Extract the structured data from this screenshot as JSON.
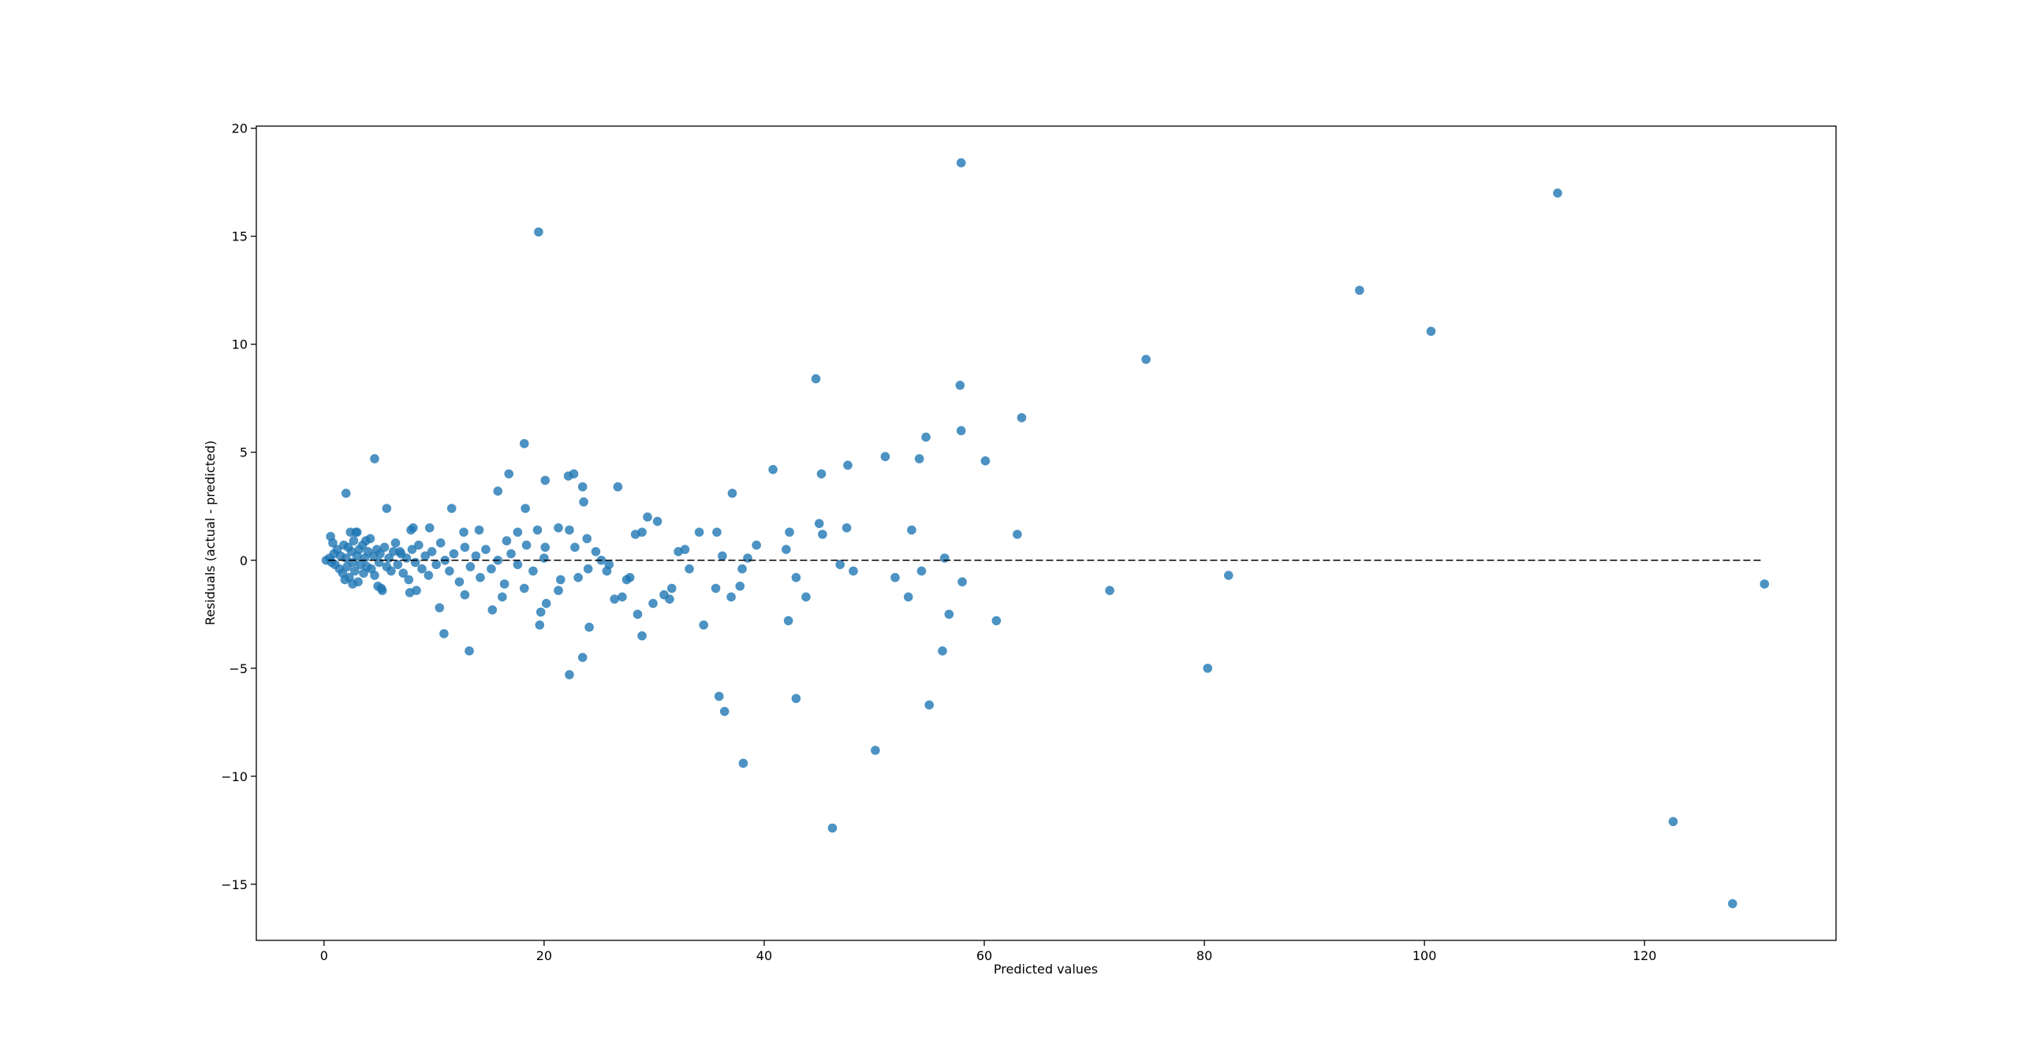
{
  "chart_data": {
    "type": "scatter",
    "xlabel": "Predicted values",
    "ylabel": "Residuals (actual - predicted)",
    "color": "#1f77b4",
    "x": [
      57.9,
      112.1,
      19.5,
      94.1,
      100.6,
      74.7,
      44.7,
      57.8,
      63.4,
      57.9,
      54.7,
      60.1,
      51.0,
      54.1,
      47.6,
      45.2,
      40.8,
      4.6,
      18.2,
      22.7,
      22.2,
      20.1,
      16.8,
      2.0,
      37.1,
      26.7,
      23.5,
      23.6,
      15.8,
      11.6,
      5.7,
      18.3,
      29.4,
      30.3,
      28.9,
      28.3,
      34.1,
      35.7,
      39.3,
      42.3,
      45.0,
      45.3,
      47.5,
      53.4,
      63.0,
      32.2,
      32.8,
      36.2,
      38.5,
      42.0,
      56.4,
      38.0,
      33.2,
      46.9,
      48.1,
      54.3,
      42.9,
      51.9,
      58.0,
      82.2,
      31.6,
      35.6,
      37.8,
      71.4,
      130.9,
      43.8,
      37.0,
      53.1,
      30.9,
      31.4,
      29.9,
      56.8,
      61.1,
      42.2,
      28.5,
      34.5,
      28.9,
      24.1,
      56.2,
      23.5,
      22.3,
      80.3,
      35.9,
      42.9,
      36.4,
      55.0,
      50.1,
      38.1,
      46.2,
      122.6,
      128.0,
      13.2,
      10.9,
      10.5,
      15.3,
      19.7,
      19.6,
      20.2,
      16.2,
      12.8,
      8.4,
      5.2,
      18.2,
      21.3,
      23.1,
      25.7,
      26.4,
      27.1,
      27.8,
      25.9,
      24.7,
      23.9,
      21.3,
      22.3,
      19.4,
      17.6,
      16.6,
      20.1,
      14.1,
      12.7,
      9.6,
      7.9,
      3.0,
      6.9,
      0.2,
      0.5,
      0.7,
      0.9,
      1.0,
      0.6,
      0.8,
      1.2,
      1.4,
      1.5,
      1.7,
      1.8,
      2.0,
      2.1,
      2.2,
      2.3,
      2.5,
      2.6,
      2.7,
      2.8,
      3.0,
      3.1,
      3.2,
      3.3,
      3.5,
      3.6,
      3.7,
      3.9,
      4.0,
      4.2,
      4.3,
      4.5,
      4.6,
      4.8,
      5.0,
      5.1,
      5.3,
      5.5,
      5.7,
      5.9,
      6.1,
      6.3,
      6.5,
      6.7,
      7.0,
      7.2,
      7.5,
      7.7,
      8.0,
      8.3,
      8.6,
      8.9,
      9.2,
      9.5,
      9.8,
      10.2,
      10.6,
      11.0,
      11.4,
      11.8,
      12.3,
      12.8,
      13.3,
      13.8,
      14.2,
      14.7,
      15.2,
      15.8,
      16.4,
      17.0,
      17.6,
      18.4,
      19.0,
      20.0,
      21.5,
      22.8,
      24.0,
      25.2,
      27.5,
      2.4,
      2.9,
      3.8,
      1.9,
      2.6,
      4.9,
      7.8,
      8.1
    ],
    "values": [
      18.4,
      17.0,
      15.2,
      12.5,
      10.6,
      9.3,
      8.4,
      8.1,
      6.6,
      6.0,
      5.7,
      4.6,
      4.8,
      4.7,
      4.4,
      4.0,
      4.2,
      4.7,
      5.4,
      4.0,
      3.9,
      3.7,
      4.0,
      3.1,
      3.1,
      3.4,
      3.4,
      2.7,
      3.2,
      2.4,
      2.4,
      2.4,
      2.0,
      1.8,
      1.3,
      1.2,
      1.3,
      1.3,
      0.7,
      1.3,
      1.7,
      1.2,
      1.5,
      1.4,
      1.2,
      0.4,
      0.5,
      0.2,
      0.1,
      0.5,
      0.1,
      -0.4,
      -0.4,
      -0.2,
      -0.5,
      -0.5,
      -0.8,
      -0.8,
      -1.0,
      -0.7,
      -1.3,
      -1.3,
      -1.2,
      -1.4,
      -1.1,
      -1.7,
      -1.7,
      -1.7,
      -1.6,
      -1.8,
      -2.0,
      -2.5,
      -2.8,
      -2.8,
      -2.5,
      -3.0,
      -3.5,
      -3.1,
      -4.2,
      -4.5,
      -5.3,
      -5.0,
      -6.3,
      -6.4,
      -7.0,
      -6.7,
      -8.8,
      -9.4,
      -12.4,
      -12.1,
      -15.9,
      -4.2,
      -3.4,
      -2.2,
      -2.3,
      -2.4,
      -3.0,
      -2.0,
      -1.7,
      -1.6,
      -1.4,
      -1.3,
      -1.3,
      -1.4,
      -0.8,
      -0.5,
      -1.8,
      -1.7,
      -0.8,
      -0.2,
      0.4,
      1.0,
      1.5,
      1.4,
      1.4,
      1.3,
      0.9,
      0.6,
      1.4,
      1.3,
      1.5,
      1.4,
      1.3,
      0.4,
      0.0,
      0.1,
      -0.1,
      0.3,
      -0.2,
      1.1,
      0.8,
      0.5,
      -0.4,
      0.2,
      -0.6,
      0.7,
      0.1,
      -0.3,
      0.6,
      -0.8,
      0.4,
      -0.1,
      0.9,
      -0.5,
      0.2,
      -1.0,
      0.5,
      -0.2,
      0.7,
      -0.6,
      0.1,
      -0.3,
      0.4,
      1.0,
      -0.4,
      0.2,
      -0.7,
      0.5,
      -0.1,
      0.3,
      -1.4,
      0.6,
      -0.3,
      0.1,
      -0.5,
      0.4,
      0.8,
      -0.2,
      0.3,
      -0.6,
      0.1,
      -0.9,
      0.5,
      -0.1,
      0.7,
      -0.4,
      0.2,
      -0.7,
      0.4,
      -0.2,
      0.8,
      0.0,
      -0.5,
      0.3,
      -1.0,
      0.6,
      -0.3,
      0.2,
      -0.8,
      0.5,
      -0.4,
      0.0,
      -1.1,
      0.3,
      -0.2,
      0.7,
      -0.5,
      0.1,
      -0.9,
      0.6,
      -0.4,
      0.0,
      -0.9,
      1.3,
      1.3,
      0.9,
      -0.9,
      -1.1,
      -1.2,
      -1.5,
      1.5
    ],
    "reference_line": {
      "y": 0,
      "x": [
        0.4,
        130.7
      ],
      "color": "#000000"
    },
    "xlim": [
      -6.15,
      137.4
    ],
    "ylim": [
      -17.6,
      20.1
    ],
    "xticks": [
      0,
      20,
      40,
      60,
      80,
      100,
      120
    ],
    "yticks": [
      {
        "value": -15,
        "label": "−15"
      },
      {
        "value": -10,
        "label": "−10"
      },
      {
        "value": -5,
        "label": "−5"
      },
      0,
      5,
      10,
      15,
      20
    ],
    "grid": false
  }
}
